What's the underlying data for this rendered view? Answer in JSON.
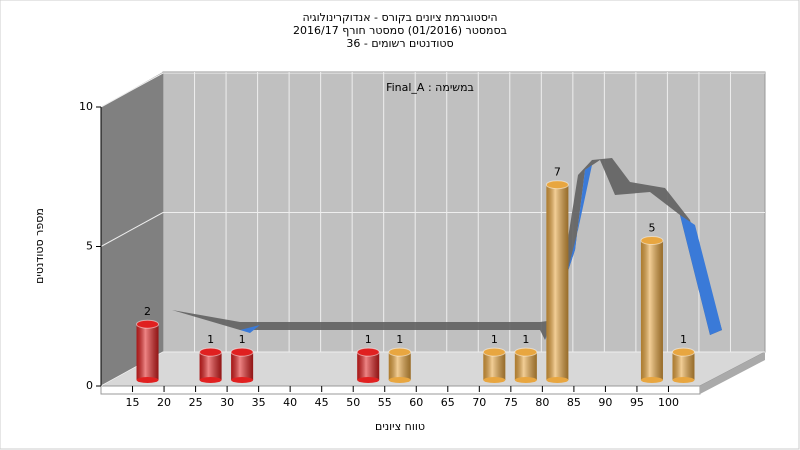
{
  "chart_data": {
    "type": "bar3d",
    "title": [
      "היסטוגרמת ציונים בקורס - אנדוקרינולוגיה",
      "בסמסטר  (01/2016)  סמסטר חורף 2016/17",
      "סטודנטים רשומים - 36"
    ],
    "annotation": "Final_A : במשימה",
    "x_label": "טווח ציונים",
    "y_label": "מספר סטודנטים",
    "x": [
      15,
      25,
      30,
      50,
      55,
      70,
      75,
      80,
      95,
      100
    ],
    "values": [
      2,
      1,
      1,
      1,
      1,
      1,
      1,
      7,
      5,
      1
    ],
    "colors": [
      "#e02020",
      "#e02020",
      "#e02020",
      "#e02020",
      "#e8a640",
      "#e8a640",
      "#e8a640",
      "#e8a640",
      "#e8a640",
      "#e8a640"
    ],
    "xlim": [
      10,
      105
    ],
    "xticks": [
      15,
      20,
      25,
      30,
      35,
      40,
      45,
      50,
      55,
      60,
      65,
      70,
      75,
      80,
      85,
      90,
      95,
      100
    ],
    "ylim": [
      0,
      10
    ],
    "yticks": [
      0,
      5,
      10
    ],
    "grid": true
  }
}
